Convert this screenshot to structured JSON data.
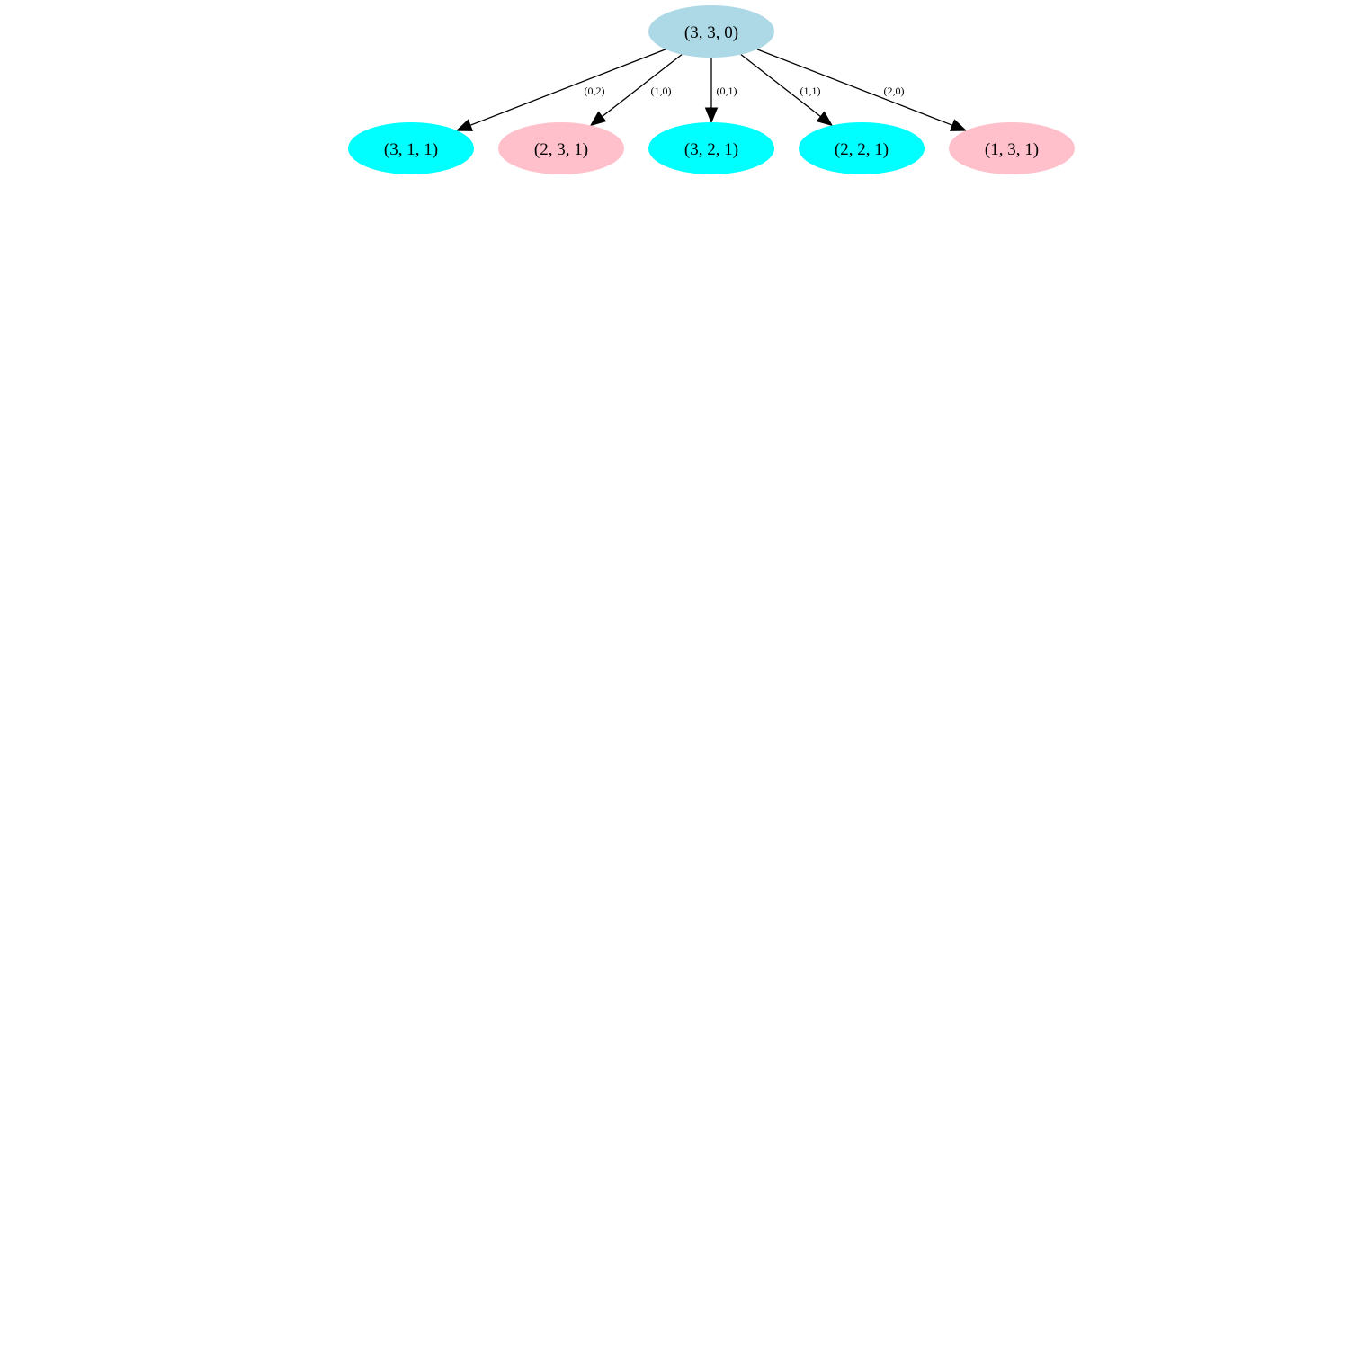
{
  "graph": {
    "root": {
      "id": "n0",
      "label": "(3, 3, 0)",
      "color": "#add8e6"
    },
    "children": [
      {
        "id": "n1",
        "label": "(3, 1, 1)",
        "color": "#00ffff",
        "edge_label": "(0,2)"
      },
      {
        "id": "n2",
        "label": "(2, 3, 1)",
        "color": "#ffc0cb",
        "edge_label": "(1,0)"
      },
      {
        "id": "n3",
        "label": "(3, 2, 1)",
        "color": "#00ffff",
        "edge_label": "(0,1)"
      },
      {
        "id": "n4",
        "label": "(2, 2, 1)",
        "color": "#00ffff",
        "edge_label": "(1,1)"
      },
      {
        "id": "n5",
        "label": "(1, 3, 1)",
        "color": "#ffc0cb",
        "edge_label": "(2,0)"
      }
    ]
  }
}
